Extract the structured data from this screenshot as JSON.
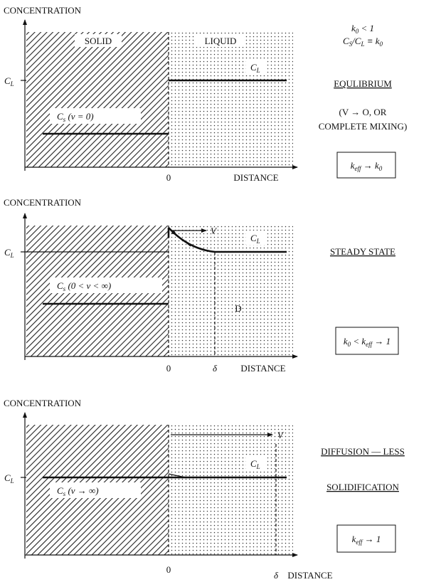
{
  "panels": [
    {
      "axis_label": "CONCENTRATION",
      "x_axis_label": "DISTANCE",
      "origin_label": "0",
      "solid_label": "SOLID",
      "liquid_label": "LIQUID",
      "cl_axis_label": [
        "C",
        "L"
      ],
      "cl_line_label": [
        "C",
        "L"
      ],
      "cs_label": [
        "C",
        "s",
        " (v = 0)"
      ],
      "note_lines": [
        [
          "k",
          "0",
          " < 1"
        ],
        [
          "C",
          "S",
          "/C",
          "L",
          " ≡ k",
          "0"
        ]
      ],
      "regime": [
        "EQULIBRIUM"
      ],
      "condition": [
        "(V → O, OR",
        "COMPLETE MIXING)"
      ],
      "result": [
        "k",
        "eff",
        " → k",
        "0"
      ]
    },
    {
      "axis_label": "CONCENTRATION",
      "x_axis_label": "DISTANCE",
      "origin_label": "0",
      "delta_label": "δ",
      "velocity_label": "V",
      "diffusion_label": "D",
      "cl_axis_label": [
        "C",
        "L"
      ],
      "cl_line_label": [
        "C",
        "L"
      ],
      "cs_label": [
        "C",
        "s",
        " (0 < v < ∞)"
      ],
      "regime": [
        "STEADY STATE"
      ],
      "result": [
        "k",
        "0",
        " < k",
        "eff",
        " → 1"
      ]
    },
    {
      "axis_label": "CONCENTRATION",
      "x_axis_label": "DISTANCE",
      "origin_label": "0",
      "delta_label": "δ",
      "velocity_label": "V",
      "cl_axis_label": [
        "C",
        "L"
      ],
      "cl_line_label": [
        "C",
        "L"
      ],
      "cs_label": [
        "C",
        "s",
        " (v → ∞)"
      ],
      "regime": [
        "DIFFUSION — LESS",
        "SOLIDIFICATION"
      ],
      "result": [
        "k",
        "eff",
        " → 1"
      ]
    }
  ]
}
